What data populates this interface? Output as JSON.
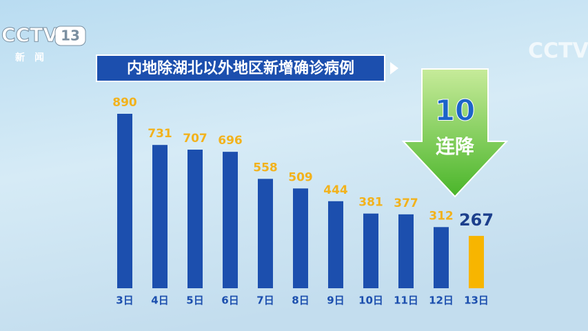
{
  "channel_logo": {
    "brand": "CCTV",
    "channel": "13",
    "name": "新闻"
  },
  "watermark": "CCTV",
  "chart_data": {
    "type": "bar",
    "title": "内地除湖北以外地区新增确诊病例",
    "categories": [
      "3日",
      "4日",
      "5日",
      "6日",
      "7日",
      "8日",
      "9日",
      "10日",
      "11日",
      "12日",
      "13日"
    ],
    "values": [
      890,
      731,
      707,
      696,
      558,
      509,
      444,
      381,
      377,
      312,
      267
    ],
    "colors": [
      "#1c4fae",
      "#1c4fae",
      "#1c4fae",
      "#1c4fae",
      "#1c4fae",
      "#1c4fae",
      "#1c4fae",
      "#1c4fae",
      "#1c4fae",
      "#1c4fae",
      "#f7b500"
    ],
    "label_colors": [
      "#f2b21c",
      "#f2b21c",
      "#f2b21c",
      "#f2b21c",
      "#f2b21c",
      "#f2b21c",
      "#f2b21c",
      "#f2b21c",
      "#f2b21c",
      "#f2b21c",
      "#1c3f8c"
    ],
    "annotation": {
      "count": "10",
      "text": "连降"
    }
  }
}
